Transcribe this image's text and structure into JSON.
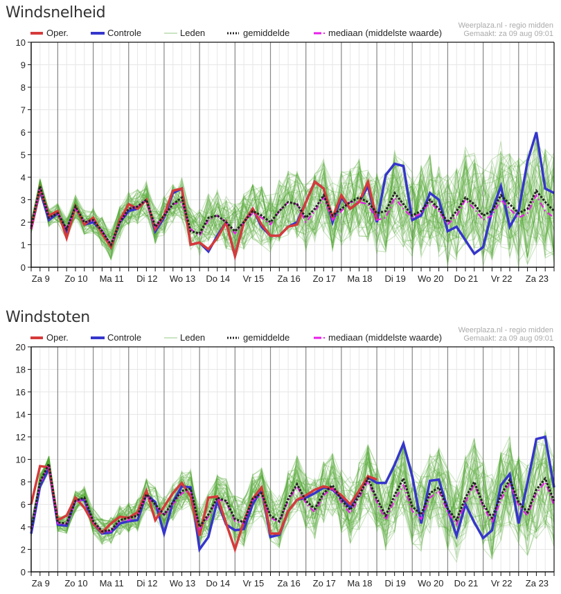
{
  "colors": {
    "oper": "#d63a3a",
    "controle": "#3535cc",
    "leden": "#4aa62c",
    "gemiddelde": "#222222",
    "mediaan": "#e81ee8",
    "grid": "#e6e6e6",
    "day_line": "#888888"
  },
  "legend": {
    "oper": "Oper.",
    "controle": "Controle",
    "leden": "Leden",
    "gemiddelde": "gemiddelde",
    "mediaan": "mediaan (middelste waarde)"
  },
  "source": {
    "line1": "Weerplaza.nl - regio midden",
    "line2": "Gemaakt: za 09 aug 09:01"
  },
  "chart_data": [
    {
      "type": "line",
      "title": "Windsnelheid",
      "xlabel": "",
      "ylabel": "",
      "ylim": [
        0,
        10
      ],
      "yticks": [
        "0",
        "1",
        "2",
        "3",
        "4",
        "5",
        "6",
        "7",
        "8",
        "9",
        "10"
      ],
      "grid": true,
      "legend_position": "top",
      "x_step": "6 uur",
      "day_labels": [
        "Za 9",
        "Zo 10",
        "Ma 11",
        "Di 12",
        "Wo 13",
        "Do 14",
        "Vr 15",
        "Za 16",
        "Zo 17",
        "Ma 18",
        "Di 19",
        "Wo 20",
        "Do 21",
        "Vr 22",
        "Za 23"
      ],
      "series": [
        {
          "name": "Oper.",
          "values": [
            1.7,
            3.5,
            2.3,
            2.5,
            1.3,
            2.7,
            1.9,
            2.2,
            1.5,
            0.9,
            2.1,
            2.8,
            2.6,
            3.0,
            1.7,
            2.3,
            3.4,
            3.5,
            1.0,
            1.1,
            0.8,
            1.3,
            2.0,
            0.5,
            2.0,
            2.6,
            1.9,
            1.4,
            1.4,
            1.8,
            1.9,
            2.9,
            3.8,
            3.5,
            2.2,
            3.2,
            2.6,
            2.9,
            3.8,
            2.1
          ]
        },
        {
          "name": "Controle",
          "values": [
            1.7,
            3.4,
            2.1,
            2.4,
            1.6,
            2.7,
            1.9,
            2.0,
            1.6,
            0.9,
            2.0,
            2.5,
            2.6,
            3.0,
            1.6,
            2.2,
            3.3,
            3.5,
            1.0,
            1.1,
            0.7,
            1.4,
            2.0,
            0.5,
            2.0,
            2.6,
            1.8,
            1.4,
            1.4,
            1.8,
            2.0,
            2.9,
            3.8,
            3.5,
            2.0,
            3.1,
            2.6,
            2.9,
            3.6,
            2.0,
            4.1,
            4.6,
            4.5,
            2.1,
            2.3,
            3.3,
            3.0,
            1.6,
            1.8,
            1.2,
            0.6,
            0.9,
            2.5,
            3.6,
            1.8,
            2.5,
            4.7,
            6.0,
            3.5,
            3.3
          ]
        },
        {
          "name": "gemiddelde",
          "values": [
            1.8,
            3.6,
            2.2,
            2.4,
            1.7,
            2.7,
            2.0,
            2.1,
            1.6,
            1.0,
            2.0,
            2.6,
            2.7,
            3.0,
            1.8,
            2.3,
            2.8,
            3.1,
            1.6,
            1.5,
            2.2,
            2.3,
            2.0,
            1.6,
            2.0,
            2.5,
            2.3,
            2.0,
            2.5,
            2.9,
            2.8,
            2.2,
            2.6,
            3.2,
            2.3,
            2.6,
            2.9,
            3.1,
            2.9,
            2.4,
            2.5,
            3.3,
            2.8,
            2.3,
            2.5,
            3.0,
            2.6,
            2.0,
            2.5,
            3.1,
            2.8,
            2.3,
            2.5,
            3.2,
            2.8,
            2.4,
            2.6,
            3.4,
            2.9,
            2.5
          ]
        },
        {
          "name": "mediaan (middelste waarde)",
          "values": [
            1.7,
            3.6,
            2.2,
            2.4,
            1.7,
            2.6,
            2.0,
            2.1,
            1.6,
            1.0,
            2.0,
            2.6,
            2.7,
            3.0,
            1.8,
            2.3,
            2.8,
            2.9,
            1.7,
            1.4,
            2.1,
            2.3,
            2.0,
            1.5,
            2.0,
            2.4,
            2.2,
            1.9,
            2.5,
            2.9,
            2.8,
            2.0,
            2.5,
            3.1,
            2.1,
            2.5,
            2.9,
            2.9,
            2.8,
            2.1,
            2.2,
            3.1,
            2.6,
            2.2,
            2.4,
            2.9,
            2.5,
            1.9,
            2.3,
            3.0,
            2.6,
            2.1,
            2.3,
            3.0,
            2.6,
            2.2,
            2.4,
            3.2,
            2.5,
            2.2
          ]
        }
      ]
    },
    {
      "type": "line",
      "title": "Windstoten",
      "xlabel": "",
      "ylabel": "",
      "ylim": [
        0,
        20
      ],
      "yticks": [
        "0",
        "2",
        "4",
        "6",
        "8",
        "10",
        "12",
        "14",
        "16",
        "18",
        "20"
      ],
      "grid": true,
      "legend_position": "top",
      "x_step": "6 uur",
      "day_labels": [
        "Za 9",
        "Zo 10",
        "Ma 11",
        "Di 12",
        "Wo 13",
        "Do 14",
        "Vr 15",
        "Za 16",
        "Zo 17",
        "Ma 18",
        "Di 19",
        "Wo 20",
        "Do 21",
        "Vr 22",
        "Za 23"
      ],
      "series": [
        {
          "name": "Oper.",
          "values": [
            6.0,
            9.4,
            9.3,
            4.6,
            5.0,
            6.6,
            5.7,
            4.3,
            3.5,
            4.3,
            4.9,
            4.8,
            5.3,
            7.2,
            4.6,
            5.8,
            7.0,
            7.9,
            6.7,
            3.2,
            6.6,
            6.7,
            4.3,
            2.0,
            4.5,
            6.5,
            7.5,
            3.4,
            3.4,
            5.4,
            6.4,
            6.8,
            7.3,
            7.6,
            7.4,
            6.8,
            6.0,
            7.2,
            8.5,
            8.2
          ]
        },
        {
          "name": "Controle",
          "values": [
            3.4,
            7.6,
            9.2,
            4.2,
            4.1,
            6.4,
            6.4,
            4.3,
            3.4,
            3.5,
            4.3,
            4.5,
            4.6,
            6.9,
            6.2,
            3.4,
            6.2,
            7.6,
            7.5,
            2.0,
            3.1,
            6.3,
            4.2,
            3.7,
            3.8,
            6.0,
            7.4,
            3.1,
            3.3,
            5.4,
            6.4,
            6.6,
            7.0,
            7.5,
            7.3,
            6.6,
            5.7,
            7.2,
            8.4,
            7.9,
            7.9,
            9.5,
            11.4,
            8.5,
            4.3,
            8.1,
            8.2,
            5.6,
            3.2,
            6.0,
            4.4,
            3.0,
            3.7,
            7.7,
            8.7,
            4.3,
            7.9,
            11.8,
            12.0,
            7.5
          ]
        },
        {
          "name": "gemiddelde",
          "values": [
            3.8,
            8.0,
            9.6,
            4.4,
            4.3,
            6.3,
            6.6,
            4.5,
            3.6,
            3.7,
            4.6,
            4.8,
            5.0,
            6.9,
            6.0,
            5.1,
            6.2,
            7.2,
            7.4,
            4.0,
            5.1,
            6.6,
            6.3,
            4.7,
            4.4,
            6.5,
            7.0,
            5.0,
            4.5,
            6.5,
            7.8,
            6.3,
            5.6,
            7.0,
            7.7,
            6.4,
            5.5,
            6.8,
            8.3,
            6.5,
            5.0,
            6.8,
            8.3,
            5.8,
            5.1,
            7.0,
            7.5,
            5.6,
            4.6,
            6.6,
            8.0,
            6.0,
            4.8,
            6.8,
            8.2,
            6.2,
            5.3,
            7.3,
            8.3,
            6.3
          ]
        },
        {
          "name": "mediaan (middelste waarde)",
          "values": [
            3.7,
            7.8,
            9.5,
            4.3,
            4.2,
            6.2,
            6.5,
            4.4,
            3.6,
            3.6,
            4.5,
            4.6,
            4.9,
            6.8,
            5.9,
            5.0,
            6.0,
            7.0,
            7.2,
            3.8,
            4.9,
            6.5,
            6.2,
            4.5,
            4.3,
            6.4,
            6.8,
            4.8,
            4.4,
            6.3,
            7.6,
            6.1,
            5.3,
            6.8,
            7.5,
            6.2,
            5.2,
            6.6,
            8.1,
            6.2,
            4.6,
            6.4,
            7.7,
            5.4,
            4.7,
            6.6,
            7.2,
            5.3,
            4.2,
            6.2,
            7.8,
            5.8,
            4.4,
            6.4,
            7.9,
            5.9,
            5.0,
            7.0,
            8.0,
            5.9
          ]
        }
      ]
    }
  ]
}
